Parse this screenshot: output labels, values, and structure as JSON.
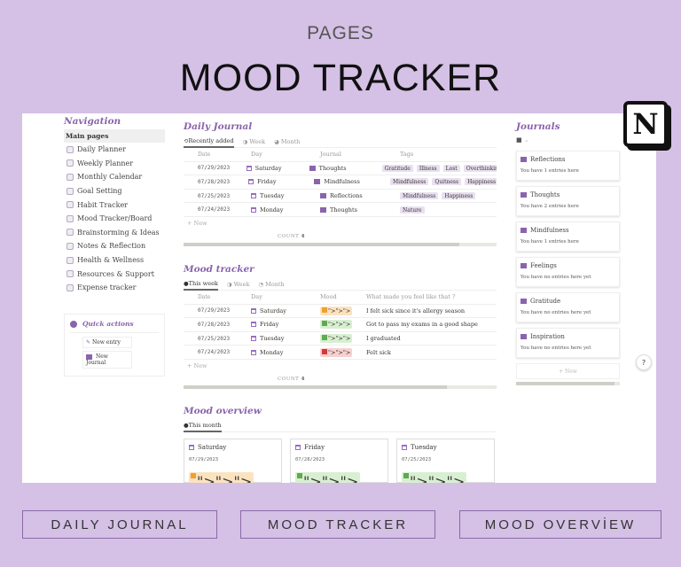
{
  "header": {
    "kicker": "PAGES",
    "title": "MOOD TRACKER"
  },
  "logo": {
    "letter": "N",
    "name": "notion-logo"
  },
  "colors": {
    "accent": "#8a63ad",
    "background": "#d5c0e6",
    "mood_orange": "#f0a030",
    "mood_green": "#5faa4f",
    "mood_red": "#d43a3a"
  },
  "navigation": {
    "title": "Navigation",
    "section": "Main pages",
    "items": [
      "Daily Planner",
      "Weekly Planner",
      "Monthly Calendar",
      "Goal Setting",
      "Habit Tracker",
      "Mood Tracker/Board",
      "Brainstorming & Ideas",
      "Notes & Reflection",
      "Health & Wellness",
      "Resources & Support",
      "Expense tracker"
    ]
  },
  "quick_actions": {
    "title": "Quick actions",
    "buttons": [
      "New entry",
      "New Journal"
    ]
  },
  "daily_journal": {
    "title": "Daily Journal",
    "tabs": [
      "Recently added",
      "Week",
      "Month"
    ],
    "columns": [
      "Date",
      "Day",
      "Journal",
      "Tags"
    ],
    "rows": [
      {
        "date": "07/29/2023",
        "day": "Saturday",
        "journal": "Thoughts",
        "tags": [
          "Gratitude",
          "Illness",
          "Lost",
          "Overthinking"
        ]
      },
      {
        "date": "07/28/2023",
        "day": "Friday",
        "journal": "Mindfulness",
        "tags": [
          "Mindfulness",
          "Quitness",
          "Happiness"
        ]
      },
      {
        "date": "07/25/2023",
        "day": "Tuesday",
        "journal": "Reflections",
        "tags": [
          "Mindfulness",
          "Happiness"
        ]
      },
      {
        "date": "07/24/2023",
        "day": "Monday",
        "journal": "Thoughts",
        "tags": [
          "Nature"
        ]
      }
    ],
    "new_label": "New",
    "count_label": "COUNT",
    "count": "4"
  },
  "mood_tracker": {
    "title": "Mood tracker",
    "tabs": [
      "This week",
      "Week",
      "Month"
    ],
    "columns": [
      "Date",
      "Day",
      "Mood",
      "What made you feel like that ?"
    ],
    "rows": [
      {
        "date": "07/29/2023",
        "day": "Saturday",
        "mood": "orange",
        "note": "I felt sick since it's allergy season"
      },
      {
        "date": "07/28/2023",
        "day": "Friday",
        "mood": "green",
        "note": "Got to pass my exams in a good shape"
      },
      {
        "date": "07/25/2023",
        "day": "Tuesday",
        "mood": "green",
        "note": "I graduated"
      },
      {
        "date": "07/24/2023",
        "day": "Monday",
        "mood": "red",
        "note": "Felt sick"
      }
    ],
    "new_label": "New",
    "count_label": "COUNT",
    "count": "4"
  },
  "mood_overview": {
    "title": "Mood overview",
    "tab": "This month",
    "cards": [
      {
        "day": "Saturday",
        "date": "07/29/2023",
        "mood": "orange"
      },
      {
        "day": "Friday",
        "date": "07/28/2023",
        "mood": "green"
      },
      {
        "day": "Tuesday",
        "date": "07/25/2023",
        "mood": "green"
      }
    ]
  },
  "journals": {
    "title": "Journals",
    "cards": [
      {
        "name": "Reflections",
        "text": "You have 1 entries here"
      },
      {
        "name": "Thoughts",
        "text": "You have 2 entries here"
      },
      {
        "name": "Mindfulness",
        "text": "You have 1 entries here"
      },
      {
        "name": "Feelings",
        "text": "You have no entries here yet"
      },
      {
        "name": "Gratitude",
        "text": "You have no entries here yet"
      },
      {
        "name": "Inspiration",
        "text": "You have no entries here yet"
      }
    ],
    "new_label": "New"
  },
  "help_label": "?",
  "bottom_buttons": [
    "DAILY JOURNAL",
    "MOOD TRACKER",
    "MOOD OVERVİEW"
  ]
}
